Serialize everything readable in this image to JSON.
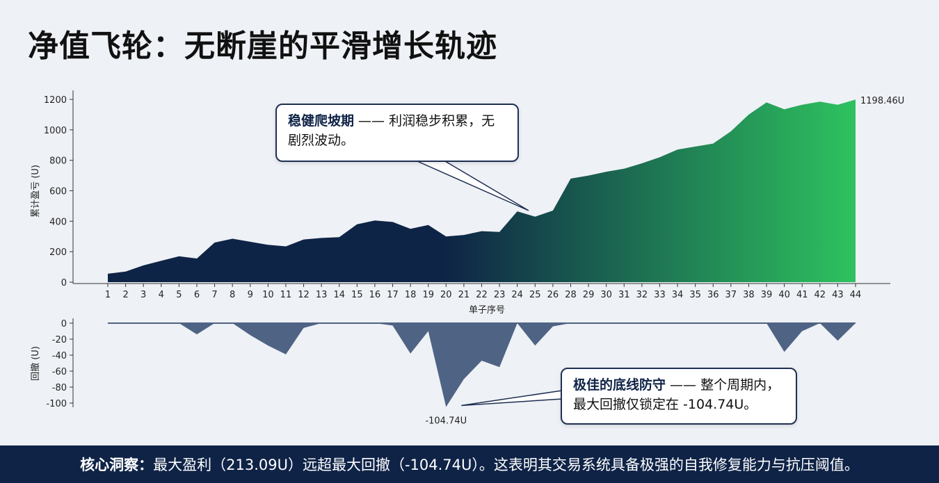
{
  "title": "净值飞轮：无断崖的平滑增长轨迹",
  "chart_data": [
    {
      "type": "area",
      "xlabel": "单子序号",
      "ylabel": "累计盈亏 (U)",
      "ylim": [
        0,
        1200
      ],
      "yticks": [
        0,
        200,
        400,
        600,
        800,
        1000,
        1200
      ],
      "x": [
        1,
        2,
        3,
        4,
        5,
        6,
        7,
        8,
        9,
        10,
        11,
        12,
        13,
        14,
        15,
        16,
        17,
        18,
        19,
        20,
        21,
        22,
        23,
        24,
        25,
        26,
        28,
        29,
        30,
        31,
        32,
        33,
        34,
        35,
        36,
        37,
        38,
        39,
        40,
        41,
        42,
        43,
        44
      ],
      "values": [
        55,
        70,
        110,
        140,
        170,
        155,
        260,
        285,
        265,
        245,
        235,
        280,
        290,
        295,
        380,
        405,
        395,
        350,
        375,
        300,
        310,
        335,
        330,
        465,
        430,
        470,
        680,
        700,
        725,
        745,
        780,
        820,
        870,
        890,
        910,
        990,
        1100,
        1180,
        1135,
        1165,
        1185,
        1165,
        1198.46
      ],
      "gradient": [
        "#0e2446",
        "#2ec25f"
      ],
      "end_label": "1198.46U"
    },
    {
      "type": "area",
      "ylabel": "回撤 (U)",
      "ylim": [
        -100,
        0
      ],
      "yticks": [
        0,
        -20,
        -40,
        -60,
        -80,
        -100
      ],
      "x": [
        1,
        2,
        3,
        4,
        5,
        6,
        7,
        8,
        9,
        10,
        11,
        12,
        13,
        14,
        15,
        16,
        17,
        18,
        19,
        20,
        21,
        22,
        23,
        24,
        25,
        26,
        28,
        29,
        30,
        31,
        32,
        33,
        34,
        35,
        36,
        37,
        38,
        39,
        40,
        41,
        42,
        43,
        44
      ],
      "values": [
        0,
        0,
        0,
        0,
        0,
        -14,
        0,
        0,
        -15,
        -28,
        -39,
        -6,
        0,
        0,
        0,
        0,
        -3,
        -38,
        -10,
        -104.74,
        -70,
        -47,
        -55,
        0,
        -28,
        -4,
        0,
        0,
        0,
        0,
        0,
        0,
        0,
        0,
        0,
        0,
        0,
        0,
        -36,
        -10,
        0,
        -22,
        0
      ],
      "min_label": "-104.74U",
      "fill": "#4f6384"
    }
  ],
  "callouts": {
    "top": {
      "bold": "稳健爬坡期",
      "rest": " —— 利润稳步积累，无剧烈波动。"
    },
    "bottom": {
      "bold": "极佳的底线防守",
      "rest": " —— 整个周期内，最大回撤仅锁定在 -104.74U。"
    }
  },
  "footer": {
    "bold": "核心洞察：",
    "text": "最大盈利（213.09U）远超最大回撤（-104.74U）。这表明其交易系统具备极强的自我修复能力与抗压阈值。"
  }
}
